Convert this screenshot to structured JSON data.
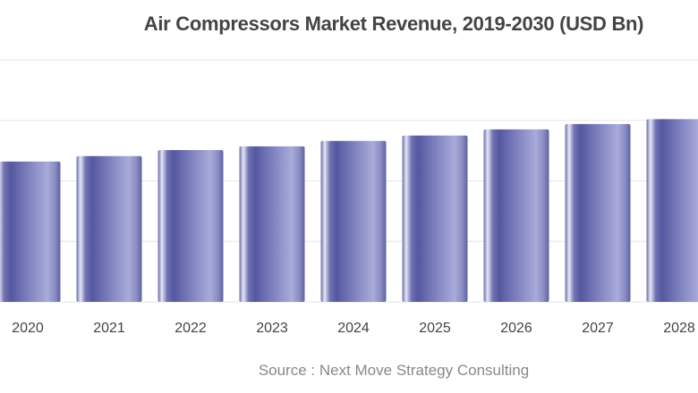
{
  "chart_data": {
    "type": "bar",
    "title": "Air Compressors Market Revenue, 2019-2030 (USD Bn)",
    "source": "Source : Next Move Strategy Consulting",
    "categories": [
      "2020",
      "2021",
      "2022",
      "2023",
      "2024",
      "2025",
      "2026",
      "2027",
      "2028"
    ],
    "values": [
      2.32,
      2.41,
      2.51,
      2.57,
      2.66,
      2.75,
      2.85,
      2.94,
      3.02
    ],
    "value_note_units": "relative (gridline steps; y-axis labels not visible)",
    "ylim": [
      0,
      4
    ],
    "grid": true,
    "bar_color": "#5a5ca3",
    "xlabel": "",
    "ylabel": ""
  }
}
